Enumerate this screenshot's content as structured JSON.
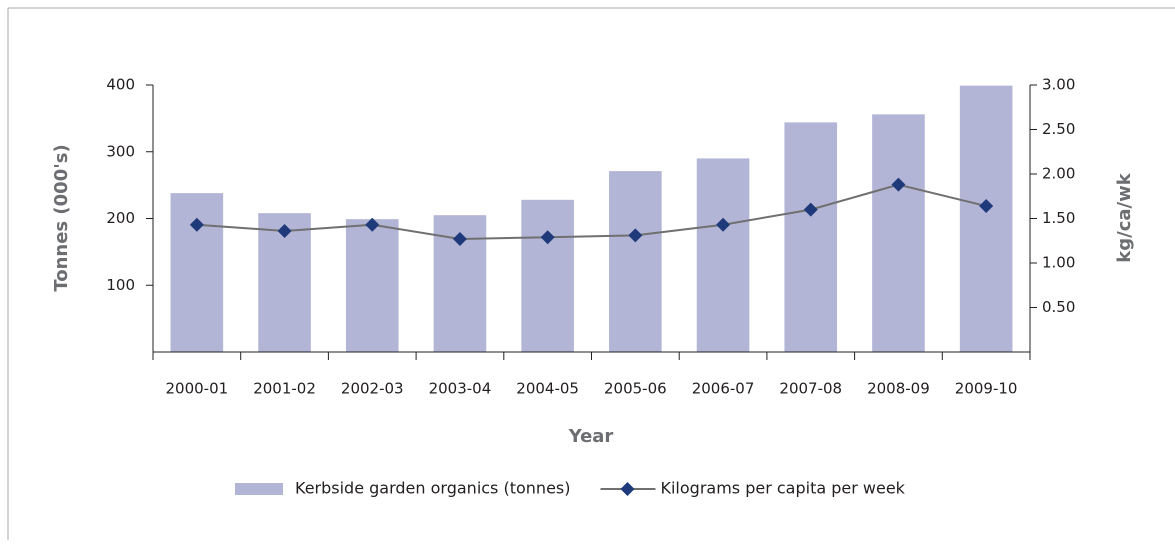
{
  "chart_data": {
    "type": "bar_line",
    "y_label": "Tonnes (000's)",
    "y2_label": "kg/ca/wk",
    "x_label": "Year",
    "categories": [
      "2000-01",
      "2001-02",
      "2002-03",
      "2003-04",
      "2004-05",
      "2005-06",
      "2006-07",
      "2007-08",
      "2008-09",
      "2009-10"
    ],
    "series": [
      {
        "name": "Kerbside garden organics (tonnes)",
        "type": "bar",
        "color": "#b3b5d6",
        "values": [
          238,
          208,
          199,
          205,
          228,
          271,
          290,
          344,
          356,
          399
        ]
      },
      {
        "name": "Kilograms per capita per week",
        "type": "line",
        "axis": "y2",
        "color": "#1f3a7a",
        "line_color": "#707070",
        "values": [
          1.43,
          1.36,
          1.43,
          1.27,
          1.29,
          1.31,
          1.43,
          1.6,
          1.88,
          1.64
        ]
      }
    ],
    "ylim": [
      0,
      400
    ],
    "yticks": [
      100,
      200,
      300,
      400
    ],
    "y2lim": [
      0,
      3
    ],
    "y2ticks": [
      {
        "value": 0.5,
        "label": "0.50"
      },
      {
        "value": 1,
        "label": "1.00"
      },
      {
        "value": 1.5,
        "label": "1.50"
      },
      {
        "value": 2,
        "label": "2.00"
      },
      {
        "value": 2.5,
        "label": "2.50"
      },
      {
        "value": 3,
        "label": "3.00"
      }
    ],
    "legend": "bottom"
  }
}
